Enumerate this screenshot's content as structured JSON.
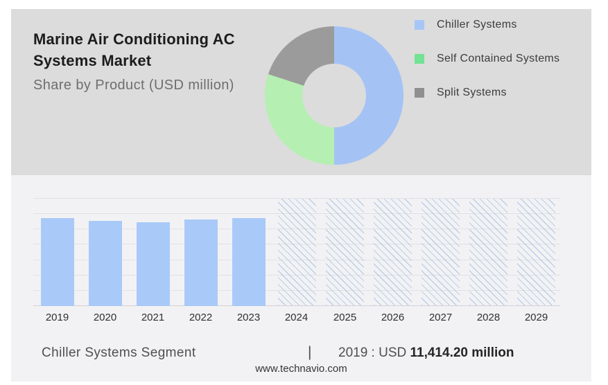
{
  "header": {
    "title_line1": "Marine Air Conditioning AC",
    "title_line2": "Systems Market",
    "subtitle": "Share by Product (USD million)"
  },
  "legend": {
    "items": [
      {
        "label": "Chiller Systems",
        "color": "#a6c6f7"
      },
      {
        "label": "Self Contained Systems",
        "color": "#72e293"
      },
      {
        "label": "Split Systems",
        "color": "#8f8f8f"
      }
    ]
  },
  "footer": {
    "segment_label": "Chiller Systems Segment",
    "separator": "|",
    "value_prefix": "2019 : USD ",
    "value_bold": "11,414.20 million",
    "site_url": "www.technavio.com"
  },
  "colors": {
    "panel_top_bg": "#dcdcdc",
    "panel_bottom_bg": "#f2f2f4",
    "bar_fill": "#a9c9f8",
    "hatch_line": "#8fb2e0",
    "gridline": "#e2e2e4",
    "baseline": "#d2d2d5"
  },
  "chart_data": [
    {
      "type": "pie",
      "subtype": "donut",
      "title": "Share by Product (USD million)",
      "labels": [
        "Chiller Systems",
        "Self Contained Systems",
        "Split Systems"
      ],
      "values_percent": [
        50,
        30,
        20
      ],
      "colors": [
        "#a4c3f4",
        "#b5efb2",
        "#9b9b9b"
      ],
      "legend_position": "right"
    },
    {
      "type": "bar",
      "title": "Marine Air Conditioning AC Systems Market by year (USD million)",
      "categories": [
        "2019",
        "2020",
        "2021",
        "2022",
        "2023",
        "2024",
        "2025",
        "2026",
        "2027",
        "2028",
        "2029"
      ],
      "values": [
        11414.2,
        11060,
        10850,
        11180,
        11410,
        null,
        null,
        null,
        null,
        null,
        null
      ],
      "forecast_categories": [
        "2024",
        "2025",
        "2026",
        "2027",
        "2028",
        "2029"
      ],
      "known_label": "2019 : USD 11,414.20 million",
      "bar_color": "#a9c9f8",
      "ylim": [
        0,
        14000
      ],
      "gridline_count": 8,
      "grid": true,
      "legend_position": "none"
    }
  ]
}
